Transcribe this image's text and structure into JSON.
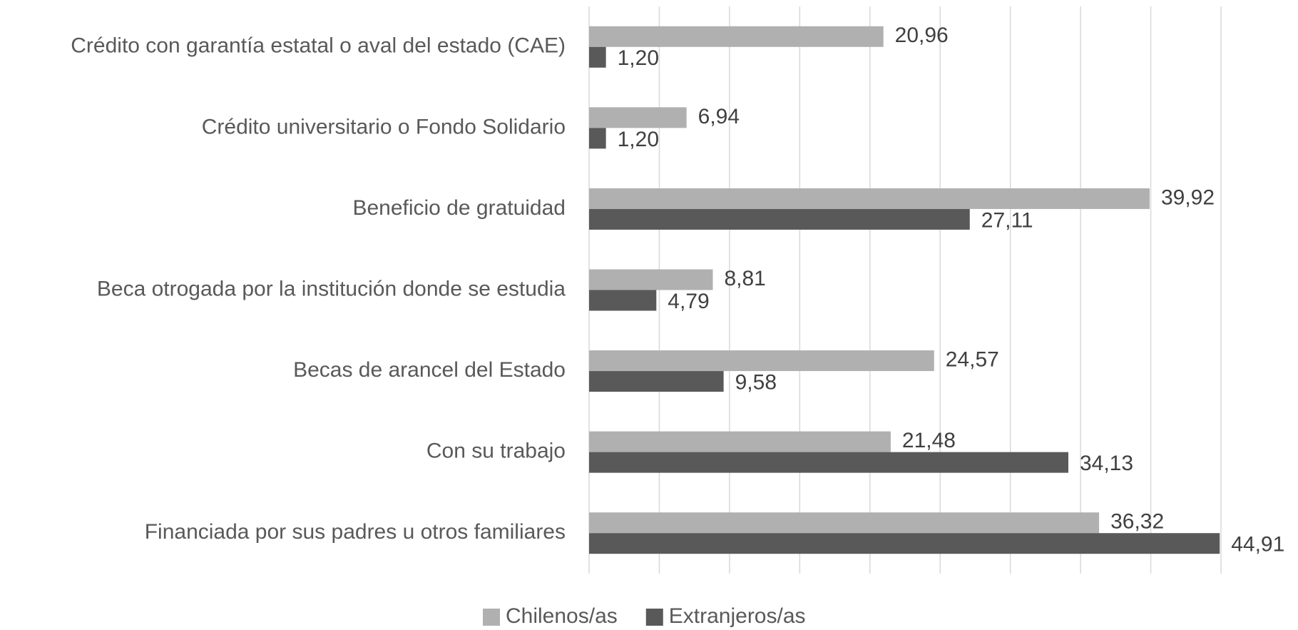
{
  "chart_data": {
    "type": "bar",
    "orientation": "horizontal",
    "categories": [
      "Crédito con garantía estatal o aval del estado (CAE)",
      "Crédito universitario o Fondo Solidario",
      "Beneficio de gratuidad",
      "Beca otrogada por la institución donde se estudia",
      "Becas de arancel del Estado",
      "Con su trabajo ",
      "Financiada por sus padres u otros familiares"
    ],
    "series": [
      {
        "name": "Chilenos/as",
        "color": "#b0b0b0",
        "values": [
          20.96,
          6.94,
          39.92,
          8.81,
          24.57,
          21.48,
          36.32
        ],
        "value_labels": [
          "20,96",
          "6,94",
          "39,92",
          "8,81",
          "24,57",
          "21,48",
          "36,32"
        ]
      },
      {
        "name": "Extranjeros/as",
        "color": "#595959",
        "values": [
          1.2,
          1.2,
          27.11,
          4.79,
          9.58,
          34.13,
          44.91
        ],
        "value_labels": [
          "1,20",
          "1,20",
          "27,11",
          "4,79",
          "9,58",
          "34,13",
          "44,91"
        ]
      }
    ],
    "xlim": [
      0,
      45
    ],
    "xticks": [
      0,
      5,
      10,
      15,
      20,
      25,
      30,
      35,
      40,
      45
    ],
    "grid": true,
    "legend": "bottom"
  }
}
